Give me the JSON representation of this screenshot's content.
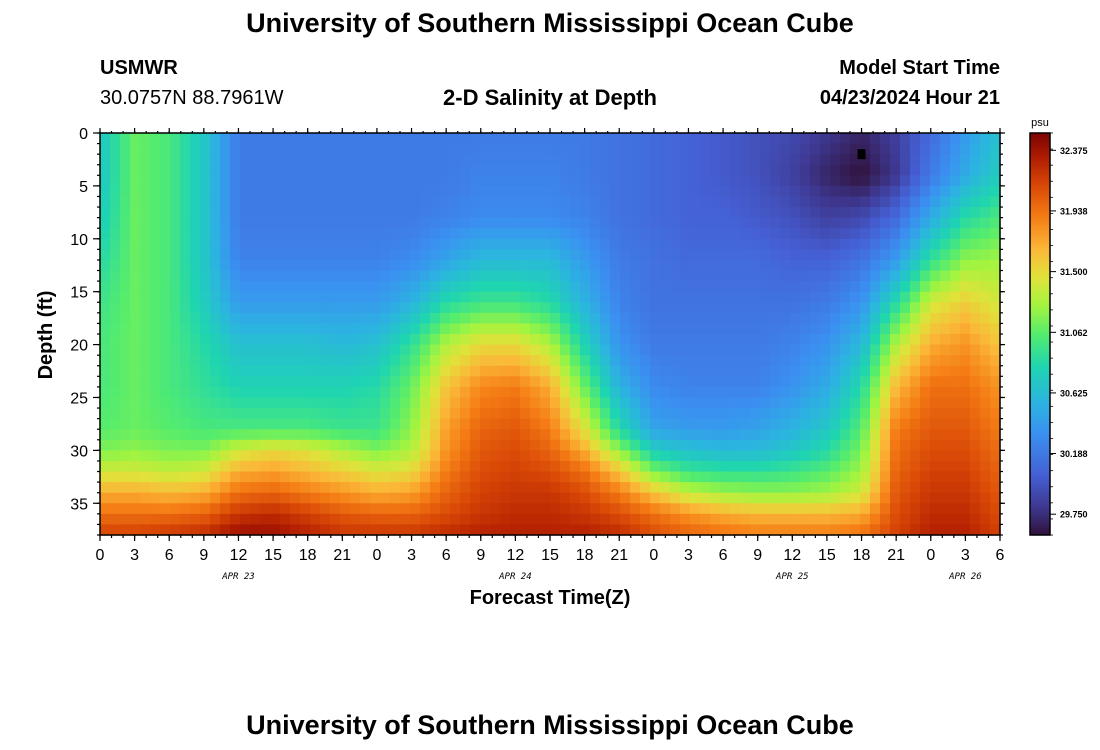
{
  "header": {
    "title": "University of Southern Mississippi Ocean Cube",
    "station_id": "USMWR",
    "station_coords": "30.0757N  88.7961W",
    "plot_title": "2-D Salinity at Depth",
    "model_label": "Model Start Time",
    "model_time": "04/23/2024 Hour 21"
  },
  "footer": {
    "title": "University of Southern Mississippi Ocean Cube"
  },
  "chart_data": {
    "type": "heatmap",
    "title": "2-D Salinity at Depth",
    "xlabel": "Forecast Time(Z)",
    "ylabel": "Depth (ft)",
    "colorbar_unit": "psu",
    "x_range_hours": [
      0,
      78
    ],
    "ylim": [
      0,
      38
    ],
    "x_ticks": [
      "0",
      "3",
      "6",
      "9",
      "12",
      "15",
      "18",
      "21",
      "0",
      "3",
      "6",
      "9",
      "12",
      "15",
      "18",
      "21",
      "0",
      "3",
      "6",
      "9",
      "12",
      "15",
      "18",
      "21",
      "0",
      "3",
      "6"
    ],
    "y_ticks": [
      0,
      5,
      10,
      15,
      20,
      25,
      30,
      35
    ],
    "date_labels": [
      {
        "label": "APR 23",
        "hour": 12
      },
      {
        "label": "APR 24",
        "hour": 36
      },
      {
        "label": "APR 25",
        "hour": 60
      },
      {
        "label": "APR 26",
        "hour": 75
      }
    ],
    "colorbar_ticks": [
      "32.375",
      "31.938",
      "31.500",
      "31.062",
      "30.625",
      "30.188",
      "29.750"
    ],
    "colorbar_range": [
      29.6,
      32.5
    ],
    "marker": {
      "hour": 66,
      "depth": 2
    },
    "field_x_hours": [
      0,
      3,
      6,
      9,
      12,
      15,
      18,
      21,
      24,
      27,
      30,
      33,
      36,
      39,
      42,
      45,
      48,
      51,
      54,
      57,
      60,
      63,
      66,
      69,
      72,
      75,
      78
    ],
    "field_y_depths": [
      0,
      4,
      8,
      12,
      16,
      20,
      24,
      28,
      30,
      32,
      34,
      36,
      38
    ],
    "field_values": [
      [
        30.7,
        31.1,
        31.0,
        30.7,
        30.2,
        30.2,
        30.2,
        30.2,
        30.2,
        30.2,
        30.2,
        30.2,
        30.2,
        30.2,
        30.2,
        30.15,
        30.1,
        30.05,
        30.0,
        29.95,
        29.9,
        29.8,
        29.7,
        29.85,
        30.1,
        30.4,
        30.65
      ],
      [
        30.7,
        31.1,
        31.0,
        30.7,
        30.2,
        30.2,
        30.2,
        30.2,
        30.2,
        30.2,
        30.2,
        30.25,
        30.25,
        30.25,
        30.2,
        30.15,
        30.1,
        30.05,
        30.0,
        29.95,
        29.85,
        29.7,
        29.6,
        29.8,
        30.2,
        30.5,
        30.75
      ],
      [
        30.75,
        31.1,
        31.0,
        30.7,
        30.2,
        30.2,
        30.2,
        30.2,
        30.2,
        30.2,
        30.25,
        30.3,
        30.3,
        30.3,
        30.25,
        30.15,
        30.1,
        30.05,
        30.05,
        30.0,
        29.95,
        29.85,
        29.9,
        30.1,
        30.5,
        30.85,
        31.0
      ],
      [
        30.85,
        31.1,
        31.0,
        30.7,
        30.25,
        30.25,
        30.25,
        30.25,
        30.25,
        30.3,
        30.45,
        30.6,
        30.6,
        30.6,
        30.4,
        30.2,
        30.15,
        30.1,
        30.1,
        30.1,
        30.05,
        30.05,
        30.15,
        30.4,
        30.9,
        31.2,
        31.25
      ],
      [
        30.95,
        31.1,
        31.0,
        30.75,
        30.4,
        30.4,
        30.4,
        30.4,
        30.4,
        30.55,
        30.85,
        30.95,
        30.95,
        30.85,
        30.55,
        30.25,
        30.15,
        30.15,
        30.15,
        30.15,
        30.15,
        30.2,
        30.35,
        30.85,
        31.4,
        31.55,
        31.4
      ],
      [
        31.0,
        31.1,
        31.0,
        30.85,
        30.65,
        30.65,
        30.65,
        30.6,
        30.65,
        30.9,
        31.3,
        31.5,
        31.5,
        31.3,
        30.8,
        30.35,
        30.2,
        30.2,
        30.2,
        30.2,
        30.25,
        30.35,
        30.6,
        31.3,
        31.7,
        31.8,
        31.6
      ],
      [
        31.0,
        31.1,
        31.0,
        30.9,
        30.8,
        30.8,
        30.8,
        30.8,
        30.85,
        31.1,
        31.6,
        31.85,
        31.9,
        31.7,
        31.1,
        30.55,
        30.3,
        30.25,
        30.25,
        30.25,
        30.35,
        30.5,
        30.85,
        31.65,
        31.95,
        31.95,
        31.8
      ],
      [
        31.05,
        31.1,
        31.05,
        31.0,
        31.0,
        31.0,
        31.0,
        30.95,
        30.95,
        31.2,
        31.75,
        32.0,
        32.05,
        31.9,
        31.45,
        30.85,
        30.45,
        30.4,
        30.4,
        30.45,
        30.55,
        30.7,
        31.05,
        31.9,
        32.05,
        32.05,
        31.9
      ],
      [
        31.15,
        31.2,
        31.15,
        31.15,
        31.4,
        31.5,
        31.45,
        31.3,
        31.15,
        31.3,
        31.8,
        32.05,
        32.1,
        32.0,
        31.7,
        31.2,
        30.75,
        30.65,
        30.6,
        30.6,
        30.7,
        30.85,
        31.15,
        31.95,
        32.1,
        32.1,
        31.95
      ],
      [
        31.4,
        31.4,
        31.35,
        31.4,
        31.7,
        31.75,
        31.65,
        31.55,
        31.45,
        31.5,
        31.9,
        32.1,
        32.15,
        32.1,
        31.95,
        31.6,
        31.15,
        30.95,
        30.9,
        30.9,
        30.95,
        31.05,
        31.25,
        32.0,
        32.15,
        32.15,
        32.0
      ],
      [
        31.7,
        31.7,
        31.65,
        31.7,
        31.95,
        32.0,
        31.9,
        31.8,
        31.7,
        31.75,
        32.0,
        32.15,
        32.2,
        32.2,
        32.1,
        31.9,
        31.6,
        31.35,
        31.25,
        31.2,
        31.2,
        31.25,
        31.4,
        32.05,
        32.2,
        32.2,
        32.05
      ],
      [
        31.95,
        31.95,
        31.95,
        32.0,
        32.2,
        32.25,
        32.15,
        32.05,
        32.0,
        32.0,
        32.1,
        32.2,
        32.25,
        32.25,
        32.2,
        32.1,
        31.95,
        31.8,
        31.7,
        31.65,
        31.65,
        31.65,
        31.7,
        32.1,
        32.25,
        32.25,
        32.1
      ],
      [
        32.15,
        32.15,
        32.2,
        32.25,
        32.4,
        32.4,
        32.3,
        32.2,
        32.2,
        32.2,
        32.25,
        32.3,
        32.3,
        32.3,
        32.3,
        32.25,
        32.1,
        32.0,
        31.95,
        31.9,
        31.9,
        31.9,
        31.95,
        32.15,
        32.3,
        32.3,
        32.15
      ]
    ]
  }
}
